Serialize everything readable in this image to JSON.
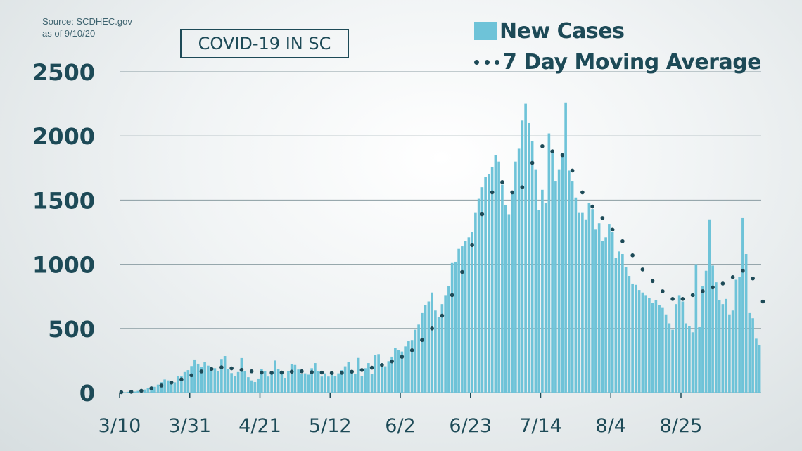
{
  "source": {
    "line1": "Source: SCDHEC.gov",
    "line2": "as of 9/10/20"
  },
  "chart_data": {
    "type": "bar",
    "title": "COVID-19 IN SC",
    "xlabel": "",
    "ylabel": "",
    "ylim": [
      0,
      2500
    ],
    "yticks": [
      0,
      500,
      1000,
      1500,
      2000,
      2500
    ],
    "x_tick_labels": [
      "3/10",
      "3/31",
      "4/21",
      "5/12",
      "6/2",
      "6/23",
      "7/14",
      "8/4",
      "8/25"
    ],
    "x_tick_day_index": [
      0,
      21,
      42,
      63,
      84,
      105,
      126,
      147,
      168
    ],
    "start_date": "3/10",
    "grid": "horizontal",
    "legend_position": "top-right",
    "series": [
      {
        "name": "New Cases",
        "style": "bar",
        "color": "#6ec3d8",
        "values": [
          2,
          3,
          6,
          5,
          8,
          13,
          19,
          24,
          33,
          47,
          45,
          62,
          81,
          102,
          95,
          82,
          80,
          128,
          131,
          160,
          175,
          207,
          258,
          225,
          198,
          236,
          210,
          175,
          190,
          170,
          262,
          285,
          182,
          152,
          126,
          160,
          269,
          165,
          120,
          95,
          82,
          110,
          185,
          170,
          125,
          145,
          250,
          185,
          150,
          115,
          170,
          220,
          215,
          180,
          145,
          150,
          140,
          190,
          230,
          165,
          125,
          150,
          125,
          145,
          130,
          150,
          175,
          205,
          240,
          160,
          145,
          270,
          130,
          190,
          230,
          145,
          295,
          300,
          225,
          205,
          245,
          280,
          350,
          330,
          320,
          360,
          400,
          410,
          490,
          530,
          620,
          680,
          710,
          780,
          640,
          590,
          690,
          760,
          830,
          1010,
          1020,
          1120,
          1140,
          1180,
          1210,
          1250,
          1400,
          1510,
          1600,
          1680,
          1700,
          1760,
          1850,
          1800,
          1620,
          1460,
          1390,
          1550,
          1800,
          1900,
          2120,
          2250,
          2100,
          1960,
          1740,
          1420,
          1580,
          1480,
          2020,
          1870,
          1650,
          1740,
          1860,
          2260,
          1730,
          1650,
          1520,
          1400,
          1400,
          1350,
          1480,
          1430,
          1270,
          1320,
          1180,
          1210,
          1310,
          1250,
          1050,
          1100,
          1080,
          980,
          910,
          850,
          840,
          800,
          780,
          760,
          740,
          700,
          720,
          680,
          660,
          610,
          540,
          490,
          690,
          760,
          710,
          540,
          520,
          470,
          1000,
          510,
          830,
          950,
          1350,
          990,
          860,
          720,
          690,
          730,
          610,
          640,
          880,
          900,
          1360,
          1080,
          620,
          580,
          420,
          370
        ],
        "daily_values_note": "Visible bars read approximately from the image"
      },
      {
        "name": "7 Day Moving Average",
        "style": "dotted-line",
        "color": "#1d4a57",
        "values": [
          3,
          4,
          5,
          6,
          8,
          10,
          14,
          19,
          26,
          33,
          40,
          47,
          55,
          62,
          70,
          78,
          85,
          93,
          103,
          113,
          124,
          135,
          146,
          156,
          165,
          172,
          178,
          184,
          190,
          194,
          197,
          196,
          193,
          189,
          184,
          180,
          177,
          174,
          170,
          166,
          161,
          158,
          156,
          155,
          155,
          154,
          153,
          154,
          156,
          158,
          160,
          163,
          165,
          167,
          166,
          164,
          161,
          159,
          158,
          157,
          156,
          155,
          154,
          153,
          152,
          152,
          154,
          157,
          160,
          163,
          167,
          171,
          176,
          182,
          188,
          194,
          200,
          207,
          215,
          224,
          233,
          243,
          254,
          266,
          279,
          293,
          310,
          330,
          355,
          380,
          410,
          440,
          470,
          500,
          530,
          565,
          600,
          650,
          700,
          760,
          820,
          880,
          940,
          1000,
          1070,
          1150,
          1230,
          1310,
          1390,
          1450,
          1510,
          1560,
          1600,
          1630,
          1640,
          1620,
          1590,
          1560,
          1540,
          1560,
          1600,
          1660,
          1720,
          1790,
          1860,
          1900,
          1920,
          1910,
          1890,
          1880,
          1870,
          1860,
          1850,
          1820,
          1780,
          1730,
          1680,
          1620,
          1560,
          1520,
          1490,
          1450,
          1420,
          1390,
          1360,
          1330,
          1300,
          1270,
          1240,
          1210,
          1180,
          1150,
          1110,
          1070,
          1030,
          990,
          960,
          930,
          900,
          870,
          840,
          810,
          790,
          770,
          750,
          730,
          720,
          720,
          730,
          740,
          750,
          760,
          770,
          780,
          790,
          800,
          810,
          820,
          830,
          840,
          850,
          860,
          880,
          900,
          920,
          940,
          950,
          940,
          920,
          890,
          850,
          790,
          710,
          640
        ]
      }
    ]
  },
  "legend": {
    "items": [
      {
        "label": "New Cases"
      },
      {
        "label": "7 Day Moving Average"
      }
    ]
  }
}
